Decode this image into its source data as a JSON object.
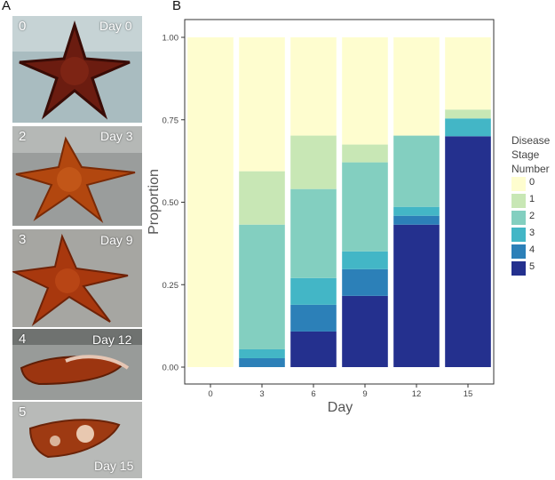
{
  "panels": {
    "a_label": "A",
    "b_label": "B"
  },
  "photos": [
    {
      "stage": "0",
      "day": "Day 0"
    },
    {
      "stage": "2",
      "day": "Day 3"
    },
    {
      "stage": "3",
      "day": "Day 9"
    },
    {
      "stage": "4",
      "day": "Day 12"
    },
    {
      "stage": "5",
      "day": "Day 15"
    }
  ],
  "chart_data": {
    "type": "bar",
    "stacked": true,
    "title": "",
    "xlabel": "Day",
    "ylabel": "Proportion",
    "categories": [
      "0",
      "3",
      "6",
      "9",
      "12",
      "15"
    ],
    "ylim": [
      0,
      1
    ],
    "yticks": [
      "0.00",
      "0.25",
      "0.50",
      "0.75",
      "1.00"
    ],
    "grid": false,
    "legend": {
      "title": [
        "Disease",
        "Stage",
        "Number"
      ],
      "position": "right"
    },
    "series": [
      {
        "name": "5",
        "color": "#24308e",
        "values": [
          0.0,
          0.0,
          0.108,
          0.216,
          0.432,
          0.7
        ]
      },
      {
        "name": "4",
        "color": "#2c80b8",
        "values": [
          0.0,
          0.027,
          0.081,
          0.081,
          0.027,
          0.0
        ]
      },
      {
        "name": "3",
        "color": "#43b6c6",
        "values": [
          0.0,
          0.027,
          0.081,
          0.054,
          0.027,
          0.054
        ]
      },
      {
        "name": "2",
        "color": "#83cfc0",
        "values": [
          0.0,
          0.378,
          0.27,
          0.27,
          0.216,
          0.0
        ]
      },
      {
        "name": "1",
        "color": "#c8e7b5",
        "values": [
          0.0,
          0.162,
          0.162,
          0.054,
          0.0,
          0.027
        ]
      },
      {
        "name": "0",
        "color": "#fefdcf",
        "values": [
          1.0,
          0.406,
          0.298,
          0.325,
          0.298,
          0.219
        ]
      }
    ]
  }
}
